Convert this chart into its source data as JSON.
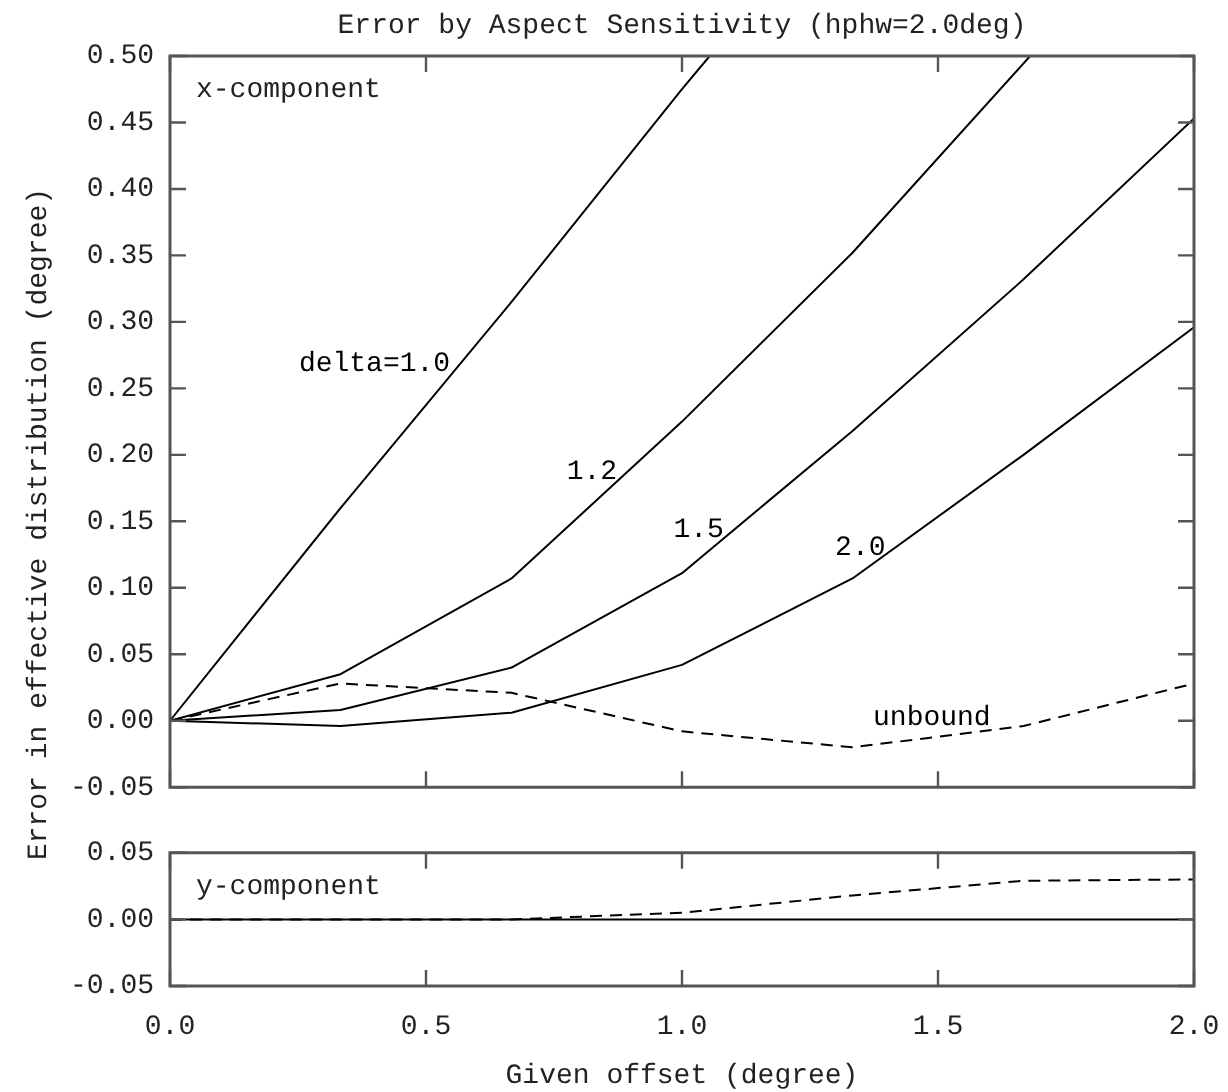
{
  "chart_data": [
    {
      "type": "line",
      "title": "Error by Aspect Sensitivity (hphw=2.0deg)",
      "ylabel": "Error in effective distribution (degree)",
      "annotations": [
        "x-component"
      ],
      "xlim": [
        0,
        2
      ],
      "xticks": [
        0,
        0.5,
        1,
        1.5,
        2
      ],
      "ylim": [
        -0.05,
        0.5
      ],
      "yticks": [
        {
          "value": -0.05,
          "label": "-0.05"
        },
        {
          "value": 0,
          "label": "0.00"
        },
        {
          "value": 0.05,
          "label": "0.05"
        },
        {
          "value": 0.1,
          "label": "0.10"
        },
        {
          "value": 0.15,
          "label": "0.15"
        },
        {
          "value": 0.2,
          "label": "0.20"
        },
        {
          "value": 0.25,
          "label": "0.25"
        },
        {
          "value": 0.3,
          "label": "0.30"
        },
        {
          "value": 0.35,
          "label": "0.35"
        },
        {
          "value": 0.4,
          "label": "0.40"
        },
        {
          "value": 0.45,
          "label": "0.45"
        },
        {
          "value": 0.5,
          "label": "0.50"
        }
      ],
      "tick_labels": "y",
      "grid": false,
      "legend": false,
      "marker": "none",
      "series": [
        {
          "name": "delta=1.0",
          "color": "#000000",
          "x": [
            0,
            0.333,
            0.667,
            1.0,
            1.054
          ],
          "values": [
            0,
            0.16,
            0.315,
            0.475,
            0.5
          ]
        },
        {
          "name": "1.2",
          "color": "#000000",
          "x": [
            0,
            0.333,
            0.667,
            1.0,
            1.333,
            1.68
          ],
          "values": [
            0,
            0.035,
            0.107,
            0.225,
            0.352,
            0.5
          ]
        },
        {
          "name": "1.5",
          "color": "#000000",
          "x": [
            0,
            0.333,
            0.667,
            1.0,
            1.333,
            1.667,
            2.0
          ],
          "values": [
            0,
            0.008,
            0.04,
            0.111,
            0.218,
            0.332,
            0.453
          ]
        },
        {
          "name": "2.0",
          "color": "#000000",
          "x": [
            0,
            0.333,
            0.667,
            1.0,
            1.333,
            1.667,
            2.0
          ],
          "values": [
            0,
            -0.004,
            0.006,
            0.042,
            0.107,
            0.2,
            0.296
          ]
        },
        {
          "name": "unbound",
          "color": "#000000",
          "line_style": "dashed",
          "x": [
            0,
            0.333,
            0.667,
            1.0,
            1.333,
            1.667,
            2.0
          ],
          "values": [
            0,
            0.028,
            0.021,
            -0.008,
            -0.02,
            -0.004,
            0.028
          ]
        }
      ]
    },
    {
      "type": "line",
      "xlabel": "Given offset (degree)",
      "annotations": [
        "y-component"
      ],
      "xlim": [
        0,
        2
      ],
      "xticks": [
        {
          "value": 0,
          "label": "0.0"
        },
        {
          "value": 0.5,
          "label": "0.5"
        },
        {
          "value": 1,
          "label": "1.0"
        },
        {
          "value": 1.5,
          "label": "1.5"
        },
        {
          "value": 2,
          "label": "2.0"
        }
      ],
      "ylim": [
        -0.05,
        0.05
      ],
      "yticks": [
        {
          "value": -0.05,
          "label": "-0.05"
        },
        {
          "value": 0,
          "label": "0.00"
        },
        {
          "value": 0.05,
          "label": "0.05"
        }
      ],
      "grid": false,
      "legend": false,
      "marker": "none",
      "series": [
        {
          "color": "#000000",
          "x": [
            0,
            0.333,
            0.667,
            1.0,
            1.333,
            1.667,
            2.0
          ],
          "values": [
            0,
            0,
            0,
            0,
            0,
            0,
            0
          ]
        },
        {
          "color": "#000000",
          "line_style": "dashed",
          "x": [
            0,
            0.333,
            0.667,
            1.0,
            1.333,
            1.667,
            2.0
          ],
          "values": [
            0,
            0,
            0,
            0.005,
            0.018,
            0.029,
            0.03
          ]
        }
      ]
    }
  ]
}
